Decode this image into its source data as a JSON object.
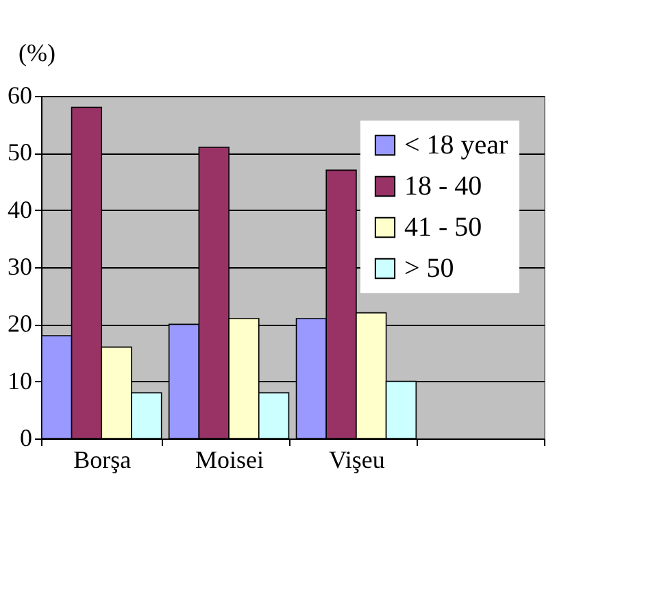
{
  "chart_data": {
    "type": "bar",
    "ylabel": "(%)",
    "categories": [
      "Borşa",
      "Moisei",
      "Vişeu",
      null
    ],
    "series": [
      {
        "name": "< 18 year",
        "color": "#9999ff",
        "values": [
          18,
          20,
          21,
          null
        ]
      },
      {
        "name": "18 - 40",
        "color": "#993366",
        "values": [
          58,
          51,
          47,
          null
        ]
      },
      {
        "name": "41 - 50",
        "color": "#ffffcc",
        "values": [
          16,
          21,
          22,
          null
        ]
      },
      {
        "name": "> 50",
        "color": "#ccffff",
        "values": [
          8,
          8,
          10,
          null
        ]
      }
    ],
    "ylim": [
      0,
      60
    ],
    "yticks": [
      0,
      10,
      20,
      30,
      40,
      50,
      60
    ],
    "grid": "y",
    "legend": "top right"
  }
}
